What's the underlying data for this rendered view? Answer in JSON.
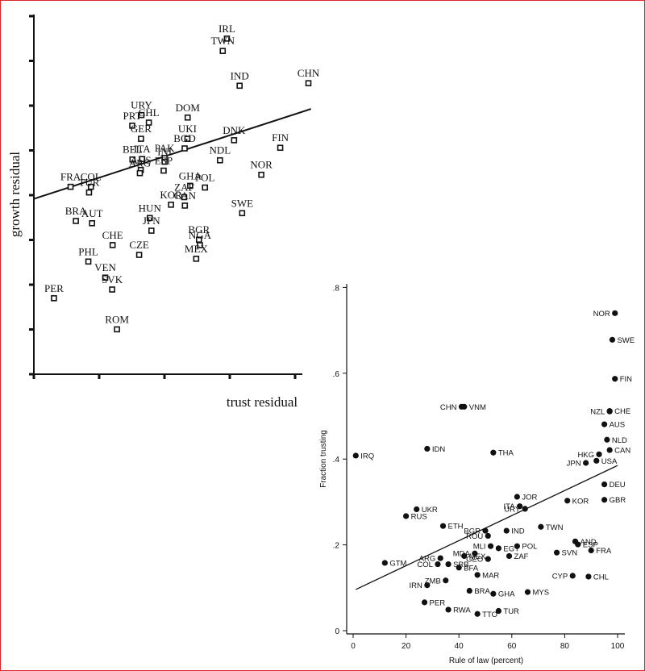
{
  "colors": {
    "ink": "#111111",
    "frame": "#d9262b"
  },
  "chart_data": [
    {
      "type": "scatter",
      "title": "",
      "xlabel": "trust residual",
      "ylabel": "growth residual",
      "marker": "hollow-square",
      "fit_line": {
        "x": [
          -0.5,
          0.7
        ],
        "y": [
          -0.05,
          0.95
        ]
      },
      "xlim": [
        -0.5,
        0.75
      ],
      "ylim": [
        -2.0,
        2.0
      ],
      "points": [
        {
          "label": "IRL",
          "x": 0.336,
          "y": 1.732
        },
        {
          "label": "TWN",
          "x": 0.318,
          "y": 1.595
        },
        {
          "label": "IND",
          "x": 0.391,
          "y": 1.208
        },
        {
          "label": "CHN",
          "x": 0.689,
          "y": 1.236
        },
        {
          "label": "URY",
          "x": -0.034,
          "y": 0.882
        },
        {
          "label": "CHL",
          "x": -0.002,
          "y": 0.798
        },
        {
          "label": "PRT",
          "x": -0.074,
          "y": 0.764
        },
        {
          "label": "GER",
          "x": -0.036,
          "y": 0.618
        },
        {
          "label": "DOM",
          "x": 0.166,
          "y": 0.854
        },
        {
          "label": "UKI",
          "x": 0.165,
          "y": 0.618
        },
        {
          "label": "BGD",
          "x": 0.153,
          "y": 0.511
        },
        {
          "label": "DNK",
          "x": 0.367,
          "y": 0.602
        },
        {
          "label": "FIN",
          "x": 0.567,
          "y": 0.518
        },
        {
          "label": "BEL",
          "x": -0.073,
          "y": 0.388
        },
        {
          "label": "ITA",
          "x": -0.031,
          "y": 0.393
        },
        {
          "label": "AUS",
          "x": -0.037,
          "y": 0.271
        },
        {
          "label": "ARG",
          "x": -0.041,
          "y": 0.236
        },
        {
          "label": "PAK",
          "x": 0.066,
          "y": 0.404
        },
        {
          "label": "INI",
          "x": 0.066,
          "y": 0.363
        },
        {
          "label": "ESP",
          "x": 0.062,
          "y": 0.264
        },
        {
          "label": "NDL",
          "x": 0.306,
          "y": 0.379
        },
        {
          "label": "NOR",
          "x": 0.485,
          "y": 0.218
        },
        {
          "label": "GHA",
          "x": 0.177,
          "y": 0.095
        },
        {
          "label": "POL",
          "x": 0.241,
          "y": 0.076
        },
        {
          "label": "FRA",
          "x": -0.341,
          "y": 0.084
        },
        {
          "label": "COL",
          "x": -0.253,
          "y": 0.084
        },
        {
          "label": "TUR",
          "x": -0.261,
          "y": 0.021
        },
        {
          "label": "ZAF",
          "x": 0.151,
          "y": -0.031
        },
        {
          "label": "KOR",
          "x": 0.094,
          "y": -0.115
        },
        {
          "label": "CAN",
          "x": 0.154,
          "y": -0.125
        },
        {
          "label": "SWE",
          "x": 0.402,
          "y": -0.209
        },
        {
          "label": "BRA",
          "x": -0.318,
          "y": -0.296
        },
        {
          "label": "AUT",
          "x": -0.248,
          "y": -0.321
        },
        {
          "label": "HUN",
          "x": 0.002,
          "y": -0.263
        },
        {
          "label": "JPN",
          "x": 0.009,
          "y": -0.404
        },
        {
          "label": "CHE",
          "x": -0.159,
          "y": -0.564
        },
        {
          "label": "CZE",
          "x": -0.044,
          "y": -0.673
        },
        {
          "label": "BGR",
          "x": 0.215,
          "y": -0.504
        },
        {
          "label": "NGA",
          "x": 0.219,
          "y": -0.565
        },
        {
          "label": "MEX",
          "x": 0.203,
          "y": -0.716
        },
        {
          "label": "PHL",
          "x": -0.264,
          "y": -0.747
        },
        {
          "label": "VEN",
          "x": -0.191,
          "y": -0.926
        },
        {
          "label": "SVK",
          "x": -0.161,
          "y": -1.058
        },
        {
          "label": "PER",
          "x": -0.413,
          "y": -1.155
        },
        {
          "label": "ROM",
          "x": -0.14,
          "y": -1.501
        }
      ]
    },
    {
      "type": "scatter",
      "title": "",
      "xlabel": "Rule of law (percent)",
      "ylabel": "Fraction trusting",
      "marker": "filled-circle",
      "xlim": [
        -3,
        103
      ],
      "ylim": [
        -0.01,
        0.81
      ],
      "xticks": [
        0,
        20,
        40,
        60,
        80,
        100
      ],
      "yticks": [
        0,
        0.2,
        0.4,
        0.6,
        0.8
      ],
      "xtick_labels": [
        "0",
        "20",
        "40",
        "60",
        "80",
        "100"
      ],
      "ytick_labels": [
        "0",
        ".2",
        ".4",
        ".6",
        ".8"
      ],
      "fit_line": {
        "x": [
          1,
          100
        ],
        "y": [
          0.096,
          0.385
        ]
      },
      "points": [
        {
          "label": "NOR",
          "x": 99,
          "y": 0.74
        },
        {
          "label": "SWE",
          "x": 98,
          "y": 0.678
        },
        {
          "label": "FIN",
          "x": 99,
          "y": 0.587
        },
        {
          "label": "CHE",
          "x": 97,
          "y": 0.512
        },
        {
          "label": "NZL",
          "x": 97,
          "y": 0.511
        },
        {
          "label": "AUS",
          "x": 95,
          "y": 0.481
        },
        {
          "label": "NLD",
          "x": 96,
          "y": 0.445
        },
        {
          "label": "CAN",
          "x": 97,
          "y": 0.421
        },
        {
          "label": "HKG",
          "x": 93,
          "y": 0.411
        },
        {
          "label": "USA",
          "x": 92,
          "y": 0.396
        },
        {
          "label": "JPN",
          "x": 88,
          "y": 0.391
        },
        {
          "label": "CHN",
          "x": 41,
          "y": 0.522
        },
        {
          "label": "VNM",
          "x": 42,
          "y": 0.522
        },
        {
          "label": "IRQ",
          "x": 1,
          "y": 0.408
        },
        {
          "label": "IDN",
          "x": 28,
          "y": 0.424
        },
        {
          "label": "THA",
          "x": 53,
          "y": 0.415
        },
        {
          "label": "DEU",
          "x": 95,
          "y": 0.341
        },
        {
          "label": "GBR",
          "x": 95,
          "y": 0.305
        },
        {
          "label": "KOR",
          "x": 81,
          "y": 0.303
        },
        {
          "label": "JOR",
          "x": 62,
          "y": 0.312
        },
        {
          "label": "ITA",
          "x": 63,
          "y": 0.29
        },
        {
          "label": "URY",
          "x": 65,
          "y": 0.284
        },
        {
          "label": "UKR",
          "x": 24,
          "y": 0.283
        },
        {
          "label": "RUS",
          "x": 20,
          "y": 0.267
        },
        {
          "label": "ETH",
          "x": 34,
          "y": 0.244
        },
        {
          "label": "TWN",
          "x": 71,
          "y": 0.242
        },
        {
          "label": "BGR",
          "x": 50,
          "y": 0.233
        },
        {
          "label": "IND",
          "x": 58,
          "y": 0.233
        },
        {
          "label": "ROU",
          "x": 51,
          "y": 0.221
        },
        {
          "label": "AND",
          "x": 84,
          "y": 0.208
        },
        {
          "label": "ESP",
          "x": 85,
          "y": 0.201
        },
        {
          "label": "MLI",
          "x": 52,
          "y": 0.197
        },
        {
          "label": "EGY",
          "x": 55,
          "y": 0.192
        },
        {
          "label": "POL",
          "x": 62,
          "y": 0.197
        },
        {
          "label": "MDA",
          "x": 46,
          "y": 0.18
        },
        {
          "label": "ARG",
          "x": 33,
          "y": 0.169
        },
        {
          "label": "MEX",
          "x": 42,
          "y": 0.174
        },
        {
          "label": "FRA",
          "x": 90,
          "y": 0.187
        },
        {
          "label": "SVN",
          "x": 77,
          "y": 0.182
        },
        {
          "label": "ZAF",
          "x": 59,
          "y": 0.174
        },
        {
          "label": "GEO",
          "x": 51,
          "y": 0.167
        },
        {
          "label": "GTM",
          "x": 12,
          "y": 0.158
        },
        {
          "label": "COL",
          "x": 32,
          "y": 0.155
        },
        {
          "label": "SRB",
          "x": 36,
          "y": 0.155
        },
        {
          "label": "BFA",
          "x": 40,
          "y": 0.147
        },
        {
          "label": "MAR",
          "x": 47,
          "y": 0.13
        },
        {
          "label": "CYP",
          "x": 83,
          "y": 0.128
        },
        {
          "label": "CHL",
          "x": 89,
          "y": 0.126
        },
        {
          "label": "IRN",
          "x": 28,
          "y": 0.106
        },
        {
          "label": "ZMB",
          "x": 35,
          "y": 0.117
        },
        {
          "label": "BRA",
          "x": 44,
          "y": 0.093
        },
        {
          "label": "GHA",
          "x": 53,
          "y": 0.086
        },
        {
          "label": "MYS",
          "x": 66,
          "y": 0.09
        },
        {
          "label": "PER",
          "x": 27,
          "y": 0.066
        },
        {
          "label": "RWA",
          "x": 36,
          "y": 0.049
        },
        {
          "label": "TTO",
          "x": 47,
          "y": 0.039
        },
        {
          "label": "TUR",
          "x": 55,
          "y": 0.046
        }
      ]
    }
  ]
}
